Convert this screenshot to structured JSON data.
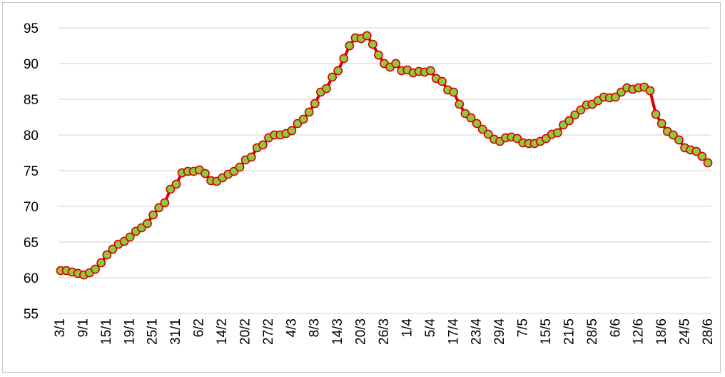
{
  "chart_data": {
    "type": "line",
    "title": "",
    "xlabel": "",
    "ylabel": "",
    "ylim": [
      55,
      95
    ],
    "y_ticks": [
      55,
      60,
      65,
      70,
      75,
      80,
      85,
      90,
      95
    ],
    "grid": "horizontal",
    "legend": "none",
    "colors": {
      "line": "#d40000",
      "marker_fill": "#92c83e",
      "marker_edge": "#d40000",
      "grid": "#d9d9d9",
      "frame": "#c9c9c9"
    },
    "x_tick_labels": [
      "3/1",
      "9/1",
      "15/1",
      "19/1",
      "25/1",
      "31/1",
      "6/2",
      "14/2",
      "20/2",
      "27/2",
      "4/3",
      "8/3",
      "14/3",
      "20/3",
      "26/3",
      "1/4",
      "5/4",
      "17/4",
      "23/4",
      "29/4",
      "7/5",
      "15/5",
      "21/5",
      "28/5",
      "6/6",
      "12/6",
      "18/6",
      "24/5",
      "28/6"
    ],
    "series": [
      {
        "values": [
          61.0,
          61.0,
          60.8,
          60.6,
          60.4,
          60.7,
          61.2,
          62.1,
          63.2,
          64.0,
          64.7,
          65.1,
          65.7,
          66.5,
          67.0,
          67.6,
          68.8,
          69.8,
          70.5,
          72.4,
          73.1,
          74.7,
          74.9,
          74.9,
          75.1,
          74.6,
          73.6,
          73.5,
          74.0,
          74.5,
          74.9,
          75.5,
          76.5,
          76.9,
          78.2,
          78.6,
          79.6,
          80.0,
          80.0,
          80.2,
          80.6,
          81.6,
          82.2,
          83.2,
          84.4,
          86.0,
          86.5,
          88.1,
          89.0,
          90.7,
          92.5,
          93.6,
          93.5,
          93.9,
          92.7,
          91.2,
          90.0,
          89.5,
          90.0,
          89.0,
          89.1,
          88.7,
          88.9,
          88.8,
          89.0,
          87.9,
          87.5,
          86.3,
          86.0,
          84.3,
          83.0,
          82.4,
          81.6,
          80.8,
          80.1,
          79.4,
          79.1,
          79.6,
          79.7,
          79.5,
          78.9,
          78.8,
          78.8,
          79.1,
          79.5,
          80.1,
          80.3,
          81.4,
          82.0,
          82.8,
          83.5,
          84.2,
          84.3,
          84.8,
          85.3,
          85.2,
          85.3,
          86.0,
          86.6,
          86.4,
          86.6,
          86.7,
          86.2,
          82.9,
          81.6,
          80.5,
          80.0,
          79.3,
          78.2,
          77.9,
          77.7,
          77.0,
          76.1
        ]
      }
    ]
  }
}
